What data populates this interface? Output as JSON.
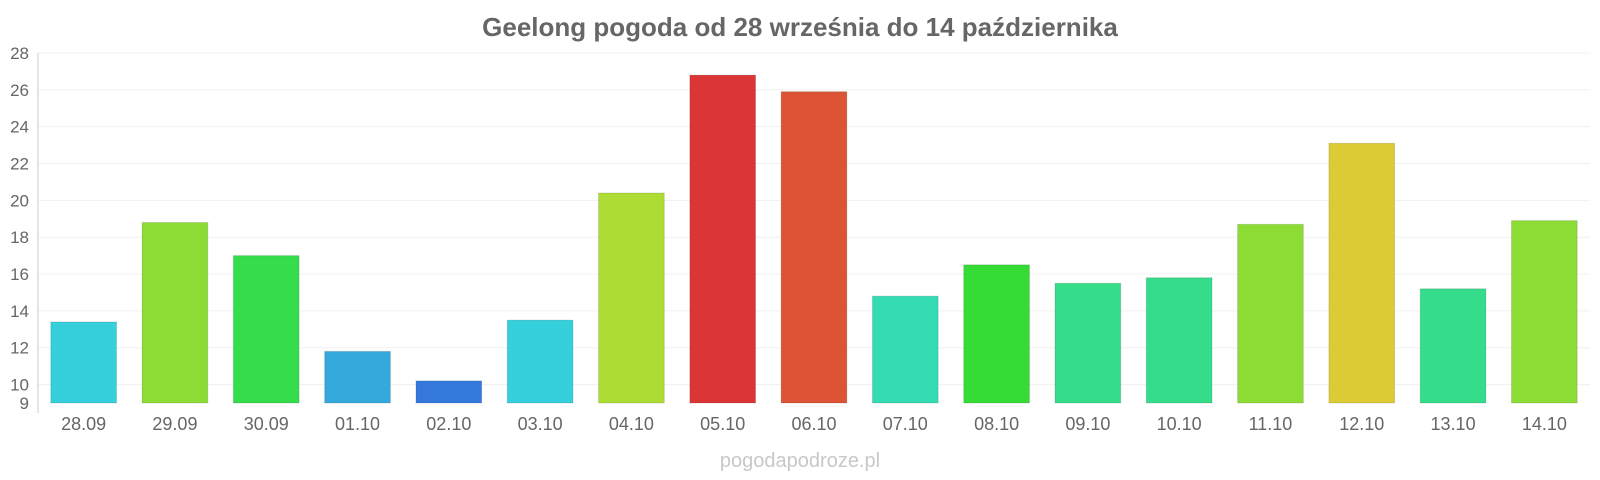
{
  "title": "Geelong pogoda od 28 września do 14 października",
  "watermark": "pogodapodroze.pl",
  "chart_data": {
    "type": "bar",
    "title": "Geelong pogoda od 28 września do 14 października",
    "xlabel": "",
    "ylabel": "",
    "ylim": [
      9,
      28
    ],
    "yticks": [
      9,
      10,
      12,
      14,
      16,
      18,
      20,
      22,
      24,
      26,
      28
    ],
    "grid": true,
    "legend": "none",
    "categories": [
      "28.09",
      "29.09",
      "30.09",
      "01.10",
      "02.10",
      "03.10",
      "04.10",
      "05.10",
      "06.10",
      "07.10",
      "08.10",
      "09.10",
      "10.10",
      "11.10",
      "12.10",
      "13.10",
      "14.10"
    ],
    "values": [
      13.4,
      18.8,
      17.0,
      11.8,
      10.2,
      13.5,
      20.4,
      26.8,
      25.9,
      14.8,
      16.5,
      15.5,
      15.8,
      18.7,
      23.1,
      15.2,
      18.9
    ],
    "colors": [
      "#36cfdc",
      "#8ddc35",
      "#35dc4b",
      "#35a8dc",
      "#3578dc",
      "#36cfdc",
      "#addc35",
      "#dc3535",
      "#dc5335",
      "#35dcb3",
      "#35dc35",
      "#35dc8a",
      "#35dc8a",
      "#8ddc35",
      "#dccb35",
      "#35dc8a",
      "#8ddc35"
    ]
  }
}
